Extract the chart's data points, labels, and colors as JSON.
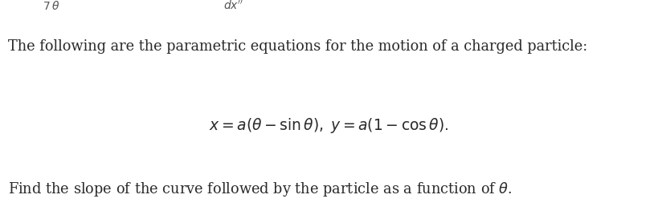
{
  "background_color": "#ffffff",
  "text_color": "#2a2a2a",
  "line1": "The following are the parametric equations for the motion of a charged particle:",
  "line2": "$x = a(\\theta - \\sin\\theta),\\; y = a(1 - \\cos\\theta).$",
  "line3": "Find the slope of the curve followed by the particle as a function of $\\theta$.",
  "top_left": "$\\!\\!\\frac{7}{\\,}$",
  "top_right_italic": "$dx^{\\prime\\prime}$",
  "font_size_body": 12.8,
  "font_size_math": 13.5,
  "font_size_top": 10.0,
  "fig_width": 8.19,
  "fig_height": 2.73,
  "dpi": 100
}
